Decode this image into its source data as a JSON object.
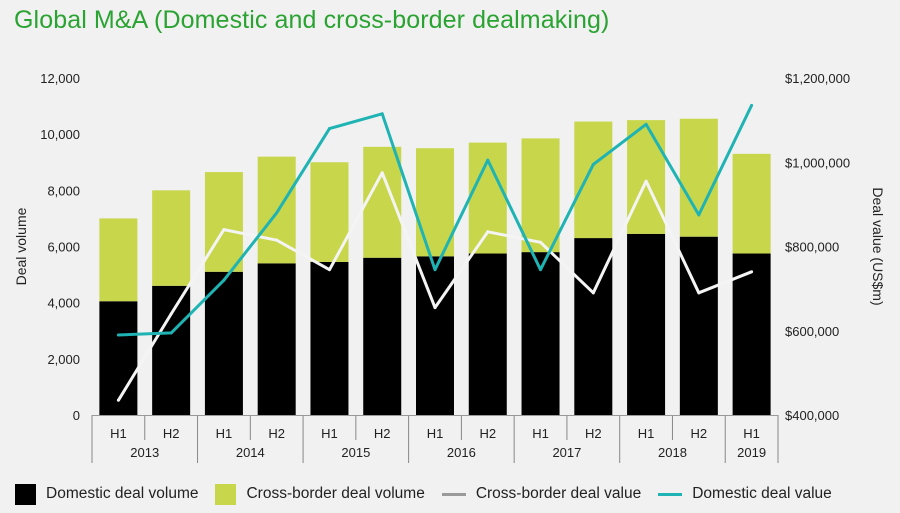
{
  "chart_data": {
    "type": "bar",
    "title": "Global M&A (Domestic and cross-border dealmaking)",
    "categories": [
      "H1 2013",
      "H2 2013",
      "H1 2014",
      "H2 2014",
      "H1 2015",
      "H2 2015",
      "H1 2016",
      "H2 2016",
      "H1 2017",
      "H2 2017",
      "H1 2018",
      "H2 2018",
      "H1 2019"
    ],
    "half_labels": [
      "H1",
      "H2",
      "H1",
      "H2",
      "H1",
      "H2",
      "H1",
      "H2",
      "H1",
      "H2",
      "H1",
      "H2",
      "H1"
    ],
    "years": [
      "2013",
      "2014",
      "2015",
      "2016",
      "2017",
      "2018",
      "2019"
    ],
    "ylabel": "Deal volume",
    "y2label": "Deal value (US$m)",
    "ylim": [
      0,
      12000
    ],
    "y2lim": [
      400000,
      1200000
    ],
    "yticks": [
      "0",
      "2,000",
      "4,000",
      "6,000",
      "8,000",
      "10,000",
      "12,000"
    ],
    "y2ticks": [
      "$400,000",
      "$600,000",
      "$800,000",
      "$1,000,000",
      "$1,200,000"
    ],
    "series": [
      {
        "name": "Domestic deal volume",
        "kind": "stacked-bar",
        "axis": "left",
        "color": "#000000",
        "values": [
          4050,
          4600,
          5100,
          5400,
          5450,
          5600,
          5650,
          5750,
          5800,
          6300,
          6450,
          6350,
          5750
        ]
      },
      {
        "name": "Cross-border deal volume",
        "kind": "stacked-bar",
        "axis": "left",
        "color": "#c8d64c",
        "values": [
          2950,
          3400,
          3550,
          3800,
          3550,
          3950,
          3850,
          3950,
          4050,
          4150,
          4050,
          4200,
          3550
        ]
      },
      {
        "name": "Cross-border deal value",
        "kind": "line",
        "axis": "right",
        "color": "#f4f4f4",
        "values": [
          435000,
          640000,
          840000,
          815000,
          745000,
          975000,
          655000,
          835000,
          810000,
          690000,
          955000,
          690000,
          740000
        ]
      },
      {
        "name": "Domestic deal value",
        "kind": "line",
        "axis": "right",
        "color": "#1fb3b3",
        "values": [
          590000,
          595000,
          720000,
          880000,
          1080000,
          1115000,
          745000,
          1005000,
          745000,
          995000,
          1090000,
          875000,
          1135000
        ]
      }
    ]
  }
}
